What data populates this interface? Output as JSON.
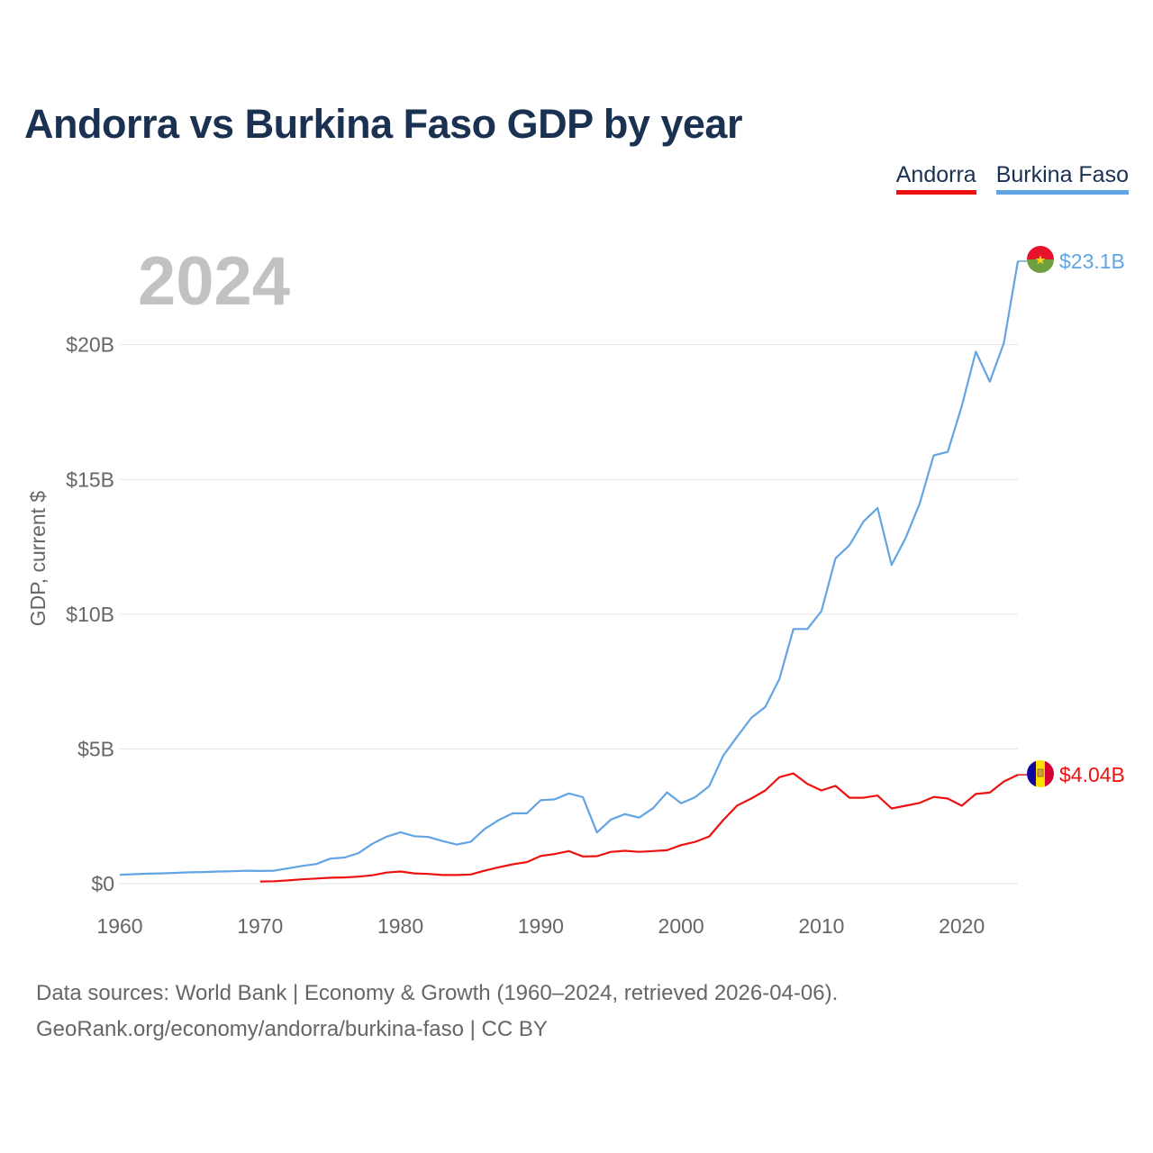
{
  "title": "Andorra vs Burkina Faso GDP by year",
  "footer": {
    "line1": "Data sources: World Bank | Economy & Growth (1960–2024, retrieved 2026-04-06).",
    "line2": "GeoRank.org/economy/andorra/burkina-faso | CC BY"
  },
  "chart_data": {
    "type": "line",
    "title": "Andorra vs Burkina Faso GDP by year",
    "xlabel": "",
    "ylabel": "GDP, current $",
    "year_label": "2024",
    "xlim": [
      1960,
      2024
    ],
    "ylim": [
      0,
      24
    ],
    "x_ticks": [
      1960,
      1970,
      1980,
      1990,
      2000,
      2010,
      2020
    ],
    "x_tick_labels": [
      "1960",
      "1970",
      "1980",
      "1990",
      "2000",
      "2010",
      "2020"
    ],
    "y_ticks": [
      0,
      5,
      10,
      15,
      20
    ],
    "y_tick_labels": [
      "$0",
      "$5B",
      "$10B",
      "$15B",
      "$20B"
    ],
    "grid": true,
    "legend_position": "top-right",
    "series": [
      {
        "name": "Andorra",
        "color": "#ee1111",
        "end_label": "$4.04B",
        "flag": "andorra-flag",
        "x": [
          1970,
          1971,
          1972,
          1973,
          1974,
          1975,
          1976,
          1977,
          1978,
          1979,
          1980,
          1981,
          1982,
          1983,
          1984,
          1985,
          1986,
          1987,
          1988,
          1989,
          1990,
          1991,
          1992,
          1993,
          1994,
          1995,
          1996,
          1997,
          1998,
          1999,
          2000,
          2001,
          2002,
          2003,
          2004,
          2005,
          2006,
          2007,
          2008,
          2009,
          2010,
          2011,
          2012,
          2013,
          2014,
          2015,
          2016,
          2017,
          2018,
          2019,
          2020,
          2021,
          2022,
          2023,
          2024
        ],
        "values": [
          0.08,
          0.09,
          0.12,
          0.16,
          0.19,
          0.22,
          0.23,
          0.26,
          0.31,
          0.41,
          0.45,
          0.38,
          0.36,
          0.32,
          0.32,
          0.34,
          0.48,
          0.61,
          0.72,
          0.8,
          1.03,
          1.1,
          1.21,
          1.01,
          1.02,
          1.18,
          1.22,
          1.18,
          1.21,
          1.24,
          1.43,
          1.55,
          1.75,
          2.36,
          2.9,
          3.16,
          3.46,
          3.95,
          4.09,
          3.7,
          3.46,
          3.63,
          3.19,
          3.19,
          3.27,
          2.79,
          2.89,
          3.0,
          3.22,
          3.16,
          2.89,
          3.33,
          3.38,
          3.79,
          4.04
        ]
      },
      {
        "name": "Burkina Faso",
        "color": "#62a4e4",
        "end_label": "$23.1B",
        "flag": "burkina-faso-flag",
        "x": [
          1960,
          1961,
          1962,
          1963,
          1964,
          1965,
          1966,
          1967,
          1968,
          1969,
          1970,
          1971,
          1972,
          1973,
          1974,
          1975,
          1976,
          1977,
          1978,
          1979,
          1980,
          1981,
          1982,
          1983,
          1984,
          1985,
          1986,
          1987,
          1988,
          1989,
          1990,
          1991,
          1992,
          1993,
          1994,
          1995,
          1996,
          1997,
          1998,
          1999,
          2000,
          2001,
          2002,
          2003,
          2004,
          2005,
          2006,
          2007,
          2008,
          2009,
          2010,
          2011,
          2012,
          2013,
          2014,
          2015,
          2016,
          2017,
          2018,
          2019,
          2020,
          2021,
          2022,
          2023,
          2024
        ],
        "values": [
          0.33,
          0.35,
          0.37,
          0.38,
          0.4,
          0.42,
          0.43,
          0.45,
          0.46,
          0.48,
          0.47,
          0.48,
          0.57,
          0.66,
          0.73,
          0.93,
          0.97,
          1.13,
          1.48,
          1.74,
          1.91,
          1.76,
          1.73,
          1.58,
          1.45,
          1.55,
          2.03,
          2.36,
          2.61,
          2.61,
          3.1,
          3.13,
          3.35,
          3.21,
          1.9,
          2.38,
          2.58,
          2.45,
          2.8,
          3.39,
          2.98,
          3.21,
          3.62,
          4.75,
          5.46,
          6.15,
          6.56,
          7.59,
          9.45,
          9.45,
          10.11,
          12.07,
          12.56,
          13.44,
          13.94,
          11.83,
          12.83,
          14.11,
          15.89,
          16.02,
          17.72,
          19.74,
          18.63,
          20.06,
          23.1
        ]
      }
    ]
  }
}
